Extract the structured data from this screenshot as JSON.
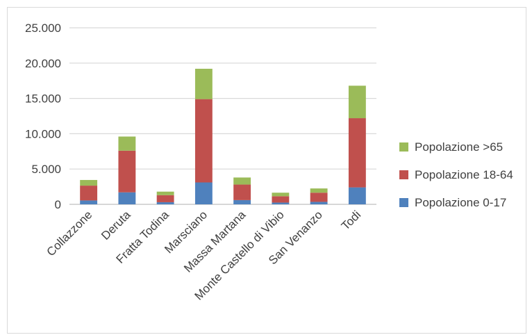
{
  "chart_data": {
    "type": "bar",
    "stacked": true,
    "categories": [
      "Collazzone",
      "Deruta",
      "Fratta Todina",
      "Marsciano",
      "Massa Martana",
      "Monte Castello di Vibio",
      "San Venanzo",
      "Todi"
    ],
    "series": [
      {
        "name": "Popolazione 0-17",
        "color": "#4f81bd",
        "values": [
          550,
          1700,
          300,
          3100,
          600,
          250,
          350,
          2400
        ]
      },
      {
        "name": "Popolazione 18-64",
        "color": "#c0504d",
        "values": [
          2100,
          5900,
          1000,
          11800,
          2200,
          900,
          1300,
          9800
        ]
      },
      {
        "name": "Popolazione >65",
        "color": "#9bbb59",
        "values": [
          800,
          2000,
          500,
          4300,
          1000,
          500,
          600,
          4600
        ]
      }
    ],
    "yticks": [
      "0",
      "5.000",
      "10.000",
      "15.000",
      "20.000",
      "25.000"
    ],
    "ylim": [
      0,
      25000
    ],
    "grid": true,
    "legend_position": "right"
  }
}
